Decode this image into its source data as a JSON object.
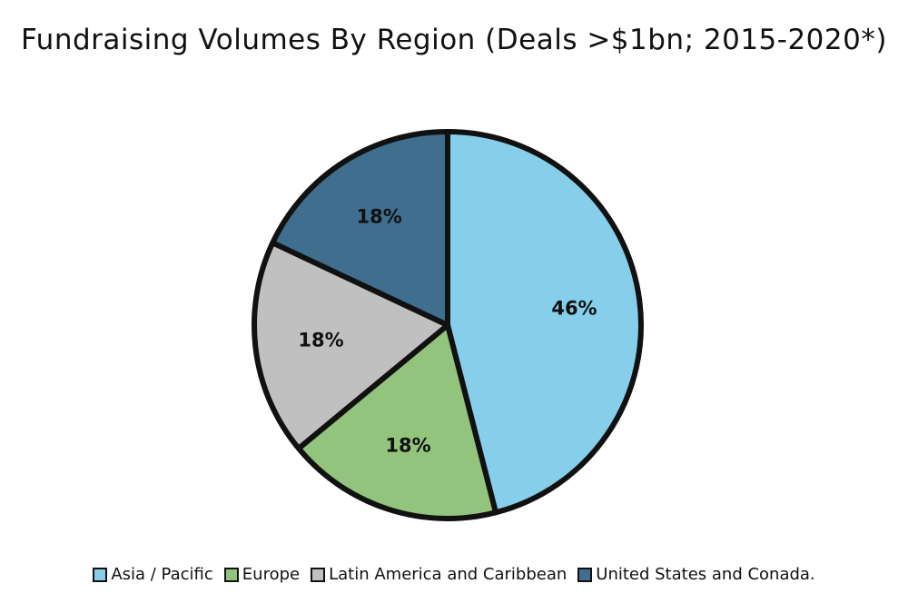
{
  "chart_data": {
    "type": "pie",
    "title": "Fundraising Volumes By Region (Deals >$1bn; 2015-2020*)",
    "slices": [
      {
        "label": "Asia / Pacific",
        "value": 46,
        "display": "46%",
        "color": "#87CEEB"
      },
      {
        "label": "Europe",
        "value": 18,
        "display": "18%",
        "color": "#93C47D"
      },
      {
        "label": "Latin America and Caribbean",
        "value": 18,
        "display": "18%",
        "color": "#C0C0C0"
      },
      {
        "label": "United States and Conada.",
        "value": 18,
        "display": "18%",
        "color": "#3F6E8F"
      }
    ],
    "legend_placement": "bottom"
  }
}
